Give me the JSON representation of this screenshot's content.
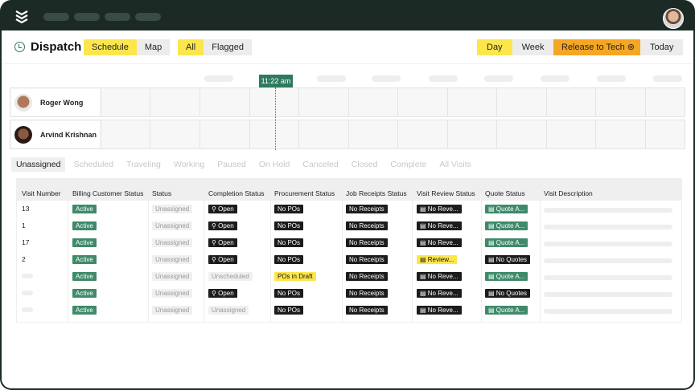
{
  "header": {
    "title": "Dispatch",
    "view_tabs": [
      "Schedule",
      "Map"
    ],
    "view_selected": "Schedule",
    "filter_tabs": [
      "All",
      "Flagged"
    ],
    "filter_selected": "All",
    "range_tabs": [
      "Day",
      "Week"
    ],
    "range_selected": "Day",
    "release_label": "Release to Tech",
    "today_label": "Today"
  },
  "timeline": {
    "now_label": "11:22 am",
    "technicians": [
      {
        "name": "Roger Wong"
      },
      {
        "name": "Arvind Krishnan"
      }
    ]
  },
  "status_tabs": [
    "Unassigned",
    "Scheduled",
    "Traveling",
    "Working",
    "Paused",
    "On Hold",
    "Canceled",
    "Closed",
    "Complete",
    "All Visits"
  ],
  "status_tab_selected": "Unassigned",
  "table": {
    "columns": [
      "Visit Number",
      "Billing Customer Status",
      "Status",
      "Completion Status",
      "Procurement Status",
      "Job Receipts Status",
      "Visit Review Status",
      "Quote Status",
      "Visit Description"
    ],
    "rows": [
      [
        "13",
        "Active",
        "Unassigned",
        "Open",
        "No POs",
        "No Receipts",
        "No Reve...",
        "Quote A..."
      ],
      [
        "1",
        "Active",
        "Unassigned",
        "Open",
        "No POs",
        "No Receipts",
        "No Reve...",
        "Quote A..."
      ],
      [
        "17",
        "Active",
        "Unassigned",
        "Open",
        "No POs",
        "No Receipts",
        "No Reve...",
        "Quote A..."
      ],
      [
        "2",
        "Active",
        "Unassigned",
        "Open",
        "No POs",
        "No Receipts",
        "Review...",
        "No Quotes"
      ],
      [
        "",
        "Active",
        "Unassigned",
        "Unscheduled",
        "POs in Draft",
        "No Receipts",
        "No Reve...",
        "Quote A..."
      ],
      [
        "",
        "Active",
        "Unassigned",
        "Open",
        "No POs",
        "No Receipts",
        "No Reve...",
        "No Quotes"
      ],
      [
        "",
        "Active",
        "Unassigned",
        "Unassigned",
        "No POs",
        "No Receipts",
        "No Reve...",
        "Quote A..."
      ]
    ]
  },
  "colors": {
    "accent_yellow": "#fde64b",
    "brand_green": "#2f7a5e",
    "release_orange": "#f5a623",
    "frame": "#1b2a24"
  }
}
